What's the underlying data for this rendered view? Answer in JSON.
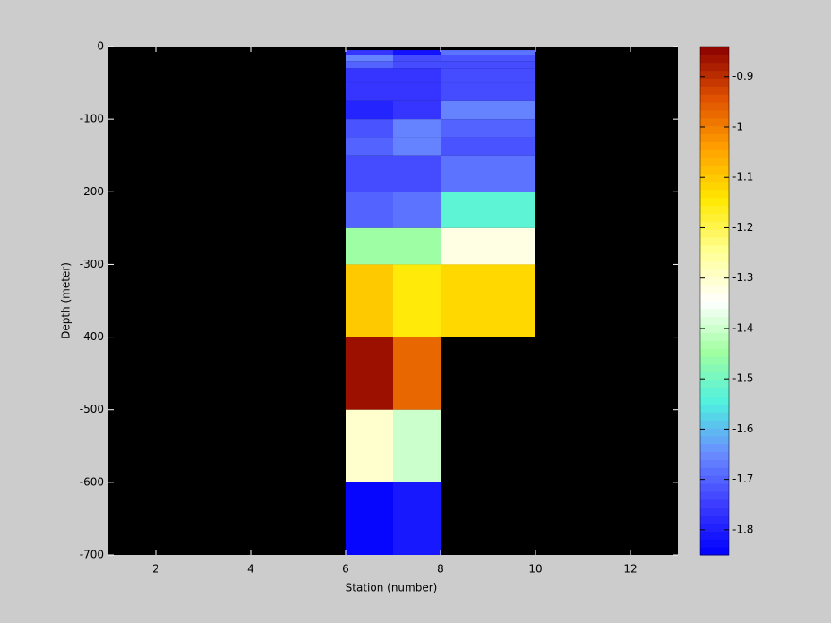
{
  "chart_data": {
    "type": "heatmap",
    "xlabel": "Station (number)",
    "ylabel": "Depth (meter)",
    "x_edges": [
      6,
      7,
      8,
      10
    ],
    "y_edges": [
      -5,
      -12,
      -20,
      -30,
      -50,
      -75,
      -100,
      -125,
      -150,
      -200,
      -250,
      -300,
      -400,
      -500,
      -600,
      -700
    ],
    "z": [
      [
        -1.76,
        -1.82,
        -1.68
      ],
      [
        -1.66,
        -1.73,
        -1.72
      ],
      [
        -1.7,
        -1.73,
        -1.73
      ],
      [
        -1.76,
        -1.76,
        -1.73
      ],
      [
        -1.76,
        -1.76,
        -1.73
      ],
      [
        -1.79,
        -1.76,
        -1.66
      ],
      [
        -1.72,
        -1.66,
        -1.7
      ],
      [
        -1.7,
        -1.66,
        -1.72
      ],
      [
        -1.73,
        -1.73,
        -1.68
      ],
      [
        -1.7,
        -1.68,
        -1.53
      ],
      [
        -1.45,
        -1.45,
        -1.32
      ],
      [
        -1.1,
        -1.15,
        -1.12
      ],
      [
        -0.86,
        -0.97,
        null
      ],
      [
        -1.3,
        -1.4,
        null
      ],
      [
        -1.84,
        -1.81,
        null
      ]
    ],
    "xlim": [
      1,
      13
    ],
    "xticks": [
      2,
      4,
      6,
      8,
      10,
      12
    ],
    "ylim": [
      -700,
      0
    ],
    "yticks": [
      0,
      -100,
      -200,
      -300,
      -400,
      -500,
      -600,
      -700
    ],
    "clim": [
      -1.85,
      -0.84
    ],
    "cticks": [
      -0.9,
      -1,
      -1.1,
      -1.2,
      -1.3,
      -1.4,
      -1.5,
      -1.6,
      -1.7,
      -1.8
    ],
    "colormap": [
      "#0000ff",
      "#3c3cff",
      "#6a8cff",
      "#50f0e0",
      "#a0ffa0",
      "#ffffff",
      "#ffff90",
      "#ffe800",
      "#ffa000",
      "#e05000",
      "#8b0000"
    ],
    "missing_color": "#000000"
  }
}
